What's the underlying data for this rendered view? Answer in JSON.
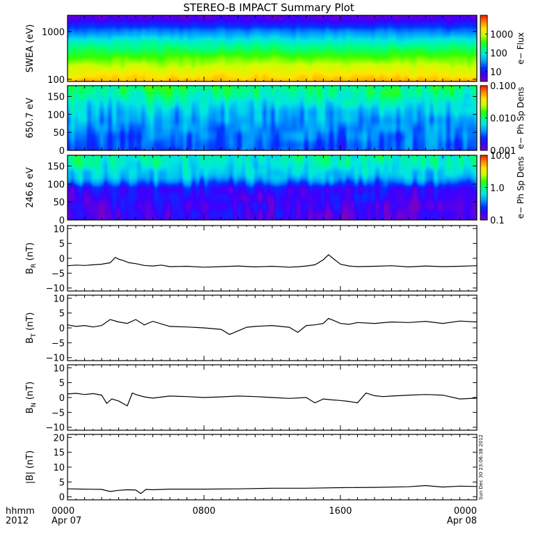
{
  "title": "STEREO-B IMPACT Summary Plot",
  "time_axis": {
    "row1_label": "hhmm",
    "row2_label": "2012",
    "ticks": [
      {
        "hour": 0,
        "line1": "0000",
        "line2": "Apr 07"
      },
      {
        "hour": 8,
        "line1": "0800",
        "line2": ""
      },
      {
        "hour": 16,
        "line1": "1600",
        "line2": ""
      },
      {
        "hour": 24,
        "line1": "0000",
        "line2": "Apr 08"
      }
    ],
    "range_hours": [
      0,
      24
    ]
  },
  "stamp": "Sun Dec 30 23:06:38 2012",
  "colors": {
    "rainbow": [
      "#7a00c8",
      "#3b00ff",
      "#0033ff",
      "#0099ff",
      "#00e5e5",
      "#00ff80",
      "#33ff00",
      "#c8ff00",
      "#ffe600",
      "#ff8c00",
      "#ff1a00"
    ],
    "line": "#000000",
    "frame": "#000000"
  },
  "chart_data": [
    {
      "type": "heatmap",
      "id": "swea",
      "ylabel": "SWEA (eV)",
      "y_scale": "log",
      "ylim": [
        90,
        2200
      ],
      "yticks": [
        {
          "v": 100,
          "t": "100"
        },
        {
          "v": 1000,
          "t": "1000"
        }
      ],
      "colorbar_label": "e− Flux",
      "colorbar_scale": "log",
      "colorbar_range": [
        3,
        10000
      ],
      "colorbar_ticks": [
        {
          "v": 10,
          "t": "10"
        },
        {
          "v": 100,
          "t": "100"
        },
        {
          "v": 1000,
          "t": "1000"
        }
      ],
      "energy_profile": [
        {
          "e": 90,
          "level": 0.86
        },
        {
          "e": 120,
          "level": 0.8
        },
        {
          "e": 180,
          "level": 0.72
        },
        {
          "e": 260,
          "level": 0.64
        },
        {
          "e": 400,
          "level": 0.54
        },
        {
          "e": 600,
          "level": 0.45
        },
        {
          "e": 900,
          "level": 0.32
        },
        {
          "e": 1300,
          "level": 0.2
        },
        {
          "e": 1700,
          "level": 0.11
        },
        {
          "e": 2200,
          "level": 0.05
        }
      ]
    },
    {
      "type": "heatmap",
      "id": "pad650",
      "ylabel": "650.7 eV",
      "ylim": [
        0,
        180
      ],
      "yticks": [
        {
          "v": 0,
          "t": "0"
        },
        {
          "v": 50,
          "t": "50"
        },
        {
          "v": 100,
          "t": "100"
        },
        {
          "v": 150,
          "t": "150"
        }
      ],
      "colorbar_label": "e− Ph Sp Dens",
      "colorbar_scale": "log",
      "colorbar_range": [
        0.001,
        0.1
      ],
      "colorbar_ticks": [
        {
          "v": 0.001,
          "t": "0.001"
        },
        {
          "v": 0.01,
          "t": "0.010"
        },
        {
          "v": 0.1,
          "t": "0.100"
        }
      ],
      "angle_profile": [
        {
          "a": 0,
          "level": 0.22
        },
        {
          "a": 40,
          "level": 0.25
        },
        {
          "a": 80,
          "level": 0.3
        },
        {
          "a": 110,
          "level": 0.35
        },
        {
          "a": 130,
          "level": 0.4
        },
        {
          "a": 150,
          "level": 0.46
        },
        {
          "a": 165,
          "level": 0.5
        },
        {
          "a": 180,
          "level": 0.52
        }
      ]
    },
    {
      "type": "heatmap",
      "id": "pad246",
      "ylabel": "246.6 eV",
      "ylim": [
        0,
        180
      ],
      "yticks": [
        {
          "v": 0,
          "t": "0"
        },
        {
          "v": 50,
          "t": "50"
        },
        {
          "v": 100,
          "t": "100"
        },
        {
          "v": 150,
          "t": "150"
        }
      ],
      "colorbar_label": "e− Ph Sp Dens",
      "colorbar_scale": "log",
      "colorbar_range": [
        0.1,
        10
      ],
      "colorbar_ticks": [
        {
          "v": 0.1,
          "t": "0.1"
        },
        {
          "v": 1,
          "t": "1.0"
        },
        {
          "v": 10,
          "t": "10.0"
        }
      ],
      "angle_profile": [
        {
          "a": 0,
          "level": 0.08
        },
        {
          "a": 60,
          "level": 0.09
        },
        {
          "a": 90,
          "level": 0.12
        },
        {
          "a": 100,
          "level": 0.2
        },
        {
          "a": 120,
          "level": 0.33
        },
        {
          "a": 140,
          "level": 0.38
        },
        {
          "a": 160,
          "level": 0.44
        },
        {
          "a": 180,
          "level": 0.48
        }
      ]
    },
    {
      "type": "line",
      "id": "br",
      "ylabel": "B",
      "ylabel_sub": "R",
      "ylabel_unit": " (nT)",
      "ylim": [
        -11,
        11
      ],
      "yticks": [
        {
          "v": -10,
          "t": "−10"
        },
        {
          "v": -5,
          "t": "−5"
        },
        {
          "v": 0,
          "t": "0"
        },
        {
          "v": 5,
          "t": "5"
        },
        {
          "v": 10,
          "t": "10"
        }
      ],
      "x": [
        0,
        0.5,
        1,
        1.5,
        2,
        2.5,
        2.8,
        3,
        3.3,
        3.6,
        4,
        4.5,
        5,
        5.5,
        6,
        7,
        8,
        9,
        10,
        11,
        12,
        13,
        13.6,
        14,
        14.5,
        15,
        15.3,
        15.6,
        16,
        16.5,
        17,
        18,
        19,
        20,
        21,
        22,
        23,
        24
      ],
      "y": [
        -2.5,
        -2.3,
        -2.4,
        -2.2,
        -2.0,
        -1.5,
        0.3,
        -0.3,
        -0.8,
        -1.5,
        -1.8,
        -2.4,
        -2.6,
        -2.3,
        -2.8,
        -2.7,
        -3.0,
        -2.8,
        -2.6,
        -2.9,
        -2.7,
        -3.0,
        -2.8,
        -2.6,
        -2.2,
        -0.5,
        1.2,
        -0.2,
        -2.0,
        -2.6,
        -2.8,
        -2.7,
        -2.5,
        -2.9,
        -2.6,
        -2.8,
        -2.7,
        -2.5
      ]
    },
    {
      "type": "line",
      "id": "bt",
      "ylabel": "B",
      "ylabel_sub": "T",
      "ylabel_unit": " (nT)",
      "ylim": [
        -11,
        11
      ],
      "yticks": [
        {
          "v": -10,
          "t": "−10"
        },
        {
          "v": -5,
          "t": "−5"
        },
        {
          "v": 0,
          "t": "0"
        },
        {
          "v": 5,
          "t": "5"
        },
        {
          "v": 10,
          "t": "10"
        }
      ],
      "x": [
        0,
        0.5,
        1,
        1.5,
        2,
        2.5,
        3,
        3.5,
        4,
        4.5,
        5,
        6,
        7,
        8,
        9,
        9.5,
        10,
        10.5,
        11,
        12,
        13,
        13.5,
        14,
        14.5,
        15,
        15.3,
        15.6,
        16,
        16.5,
        17,
        18,
        19,
        20,
        21,
        22,
        23,
        24
      ],
      "y": [
        1.0,
        0.5,
        0.8,
        0.3,
        0.8,
        2.8,
        2.0,
        1.5,
        2.8,
        1.0,
        2.2,
        0.5,
        0.3,
        0.0,
        -0.5,
        -2.2,
        -1.0,
        0.2,
        0.5,
        0.8,
        0.2,
        -1.5,
        0.8,
        1.0,
        1.5,
        3.2,
        2.5,
        1.5,
        1.2,
        1.8,
        1.5,
        2.0,
        1.8,
        2.2,
        1.5,
        2.3,
        2.0
      ]
    },
    {
      "type": "line",
      "id": "bn",
      "ylabel": "B",
      "ylabel_sub": "N",
      "ylabel_unit": " (nT)",
      "ylim": [
        -11,
        11
      ],
      "yticks": [
        {
          "v": -10,
          "t": "−10"
        },
        {
          "v": -5,
          "t": "−5"
        },
        {
          "v": 0,
          "t": "0"
        },
        {
          "v": 5,
          "t": "5"
        },
        {
          "v": 10,
          "t": "10"
        }
      ],
      "x": [
        0,
        0.5,
        1,
        1.5,
        2,
        2.3,
        2.6,
        3,
        3.5,
        3.8,
        4,
        4.5,
        5,
        6,
        7,
        8,
        9,
        10,
        11,
        12,
        13,
        14,
        14.5,
        15,
        15.5,
        16,
        16.5,
        17,
        17.5,
        18,
        18.5,
        19,
        20,
        21,
        22,
        23,
        24
      ],
      "y": [
        1.2,
        1.4,
        1.0,
        1.3,
        0.8,
        -2.0,
        -0.5,
        -1.2,
        -2.8,
        1.5,
        1.0,
        0.2,
        -0.2,
        0.5,
        0.3,
        0.0,
        0.2,
        0.5,
        0.3,
        0.0,
        -0.3,
        0.0,
        -1.8,
        -0.5,
        -0.8,
        -1.0,
        -1.3,
        -1.8,
        1.5,
        0.6,
        0.3,
        0.5,
        0.8,
        1.0,
        0.8,
        -0.5,
        -0.2
      ]
    },
    {
      "type": "line",
      "id": "bmag",
      "ylabel": "|B| (nT)",
      "ylim": [
        -1,
        21
      ],
      "yticks": [
        {
          "v": 0,
          "t": "0"
        },
        {
          "v": 5,
          "t": "5"
        },
        {
          "v": 10,
          "t": "10"
        },
        {
          "v": 15,
          "t": "15"
        },
        {
          "v": 20,
          "t": "20"
        }
      ],
      "x": [
        0,
        1,
        2,
        2.5,
        3,
        3.5,
        4,
        4.3,
        4.6,
        5,
        6,
        8,
        10,
        12,
        14,
        16,
        18,
        20,
        21,
        22,
        23,
        24
      ],
      "y": [
        2.7,
        2.6,
        2.5,
        1.8,
        2.2,
        2.4,
        2.3,
        1.1,
        2.5,
        2.4,
        2.6,
        2.6,
        2.7,
        2.9,
        2.9,
        3.1,
        3.2,
        3.4,
        3.8,
        3.3,
        3.6,
        3.5
      ]
    }
  ]
}
